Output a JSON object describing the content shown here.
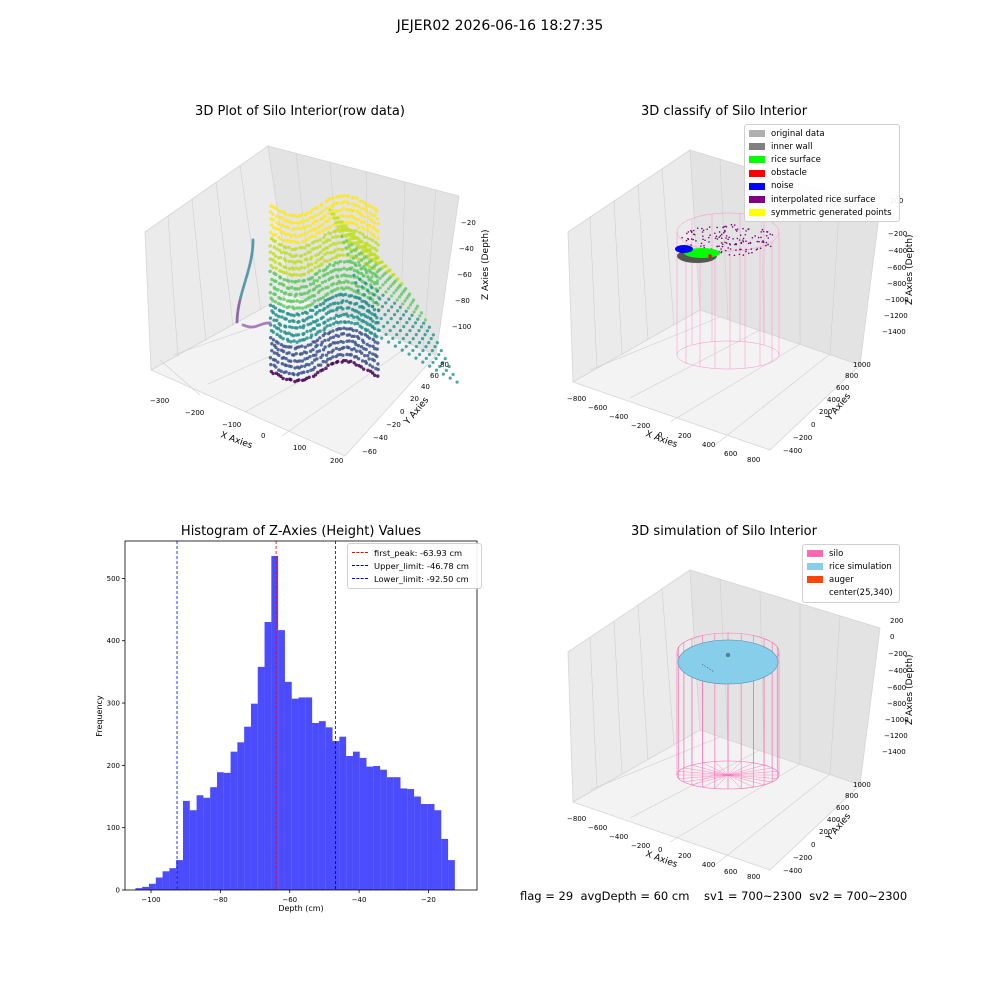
{
  "figure": {
    "suptitle": "JEJER02 2026-06-16 18:27:35",
    "footer": "flag = 29  avgDepth = 60 cm    sv1 = 700~2300  sv2 = 700~2300"
  },
  "panels": {
    "raw": {
      "title": "3D Plot of Silo Interior(row data)",
      "xlabel": "X Axies",
      "ylabel": "Y Axies",
      "zlabel": "Z Axies (Depth)",
      "xticks": [
        "−300",
        "−200",
        "−100",
        "0",
        "100",
        "200"
      ],
      "yticks": [
        "−60",
        "−40",
        "−20",
        "0",
        "20",
        "40",
        "60",
        "80"
      ],
      "zticks": [
        "−100",
        "−80",
        "−60",
        "−40",
        "−20"
      ]
    },
    "classify": {
      "title": "3D classify of Silo Interior",
      "xlabel": "X Axies",
      "ylabel": "Y Axies",
      "zlabel": "Z Axies (Depth)",
      "xticks": [
        "−800",
        "−600",
        "−400",
        "−200",
        "0",
        "200",
        "400",
        "600",
        "800"
      ],
      "yticks": [
        "−400",
        "−200",
        "0",
        "200",
        "400",
        "600",
        "800",
        "1000"
      ],
      "zticks": [
        "−1400",
        "−1200",
        "−1000",
        "−800",
        "−600",
        "−400",
        "−200",
        "0",
        "200"
      ],
      "legend": [
        {
          "label": "original data",
          "color": "#b0b0b0"
        },
        {
          "label": "inner wall",
          "color": "#808080"
        },
        {
          "label": "rice surface",
          "color": "#00ff00"
        },
        {
          "label": "obstacle",
          "color": "#ff0000"
        },
        {
          "label": "noise",
          "color": "#0000ff"
        },
        {
          "label": "interpolated rice surface",
          "color": "#800080"
        },
        {
          "label": "symmetric generated points",
          "color": "#ffff00"
        }
      ]
    },
    "simulation": {
      "title": "3D simulation of Silo Interior",
      "xlabel": "X Axies",
      "ylabel": "Y Axies",
      "zlabel": "Z Axies (Depth)",
      "xticks": [
        "−800",
        "−600",
        "−400",
        "−200",
        "0",
        "200",
        "400",
        "600",
        "800"
      ],
      "yticks": [
        "−400",
        "−200",
        "0",
        "200",
        "400",
        "600",
        "800",
        "1000"
      ],
      "zticks": [
        "−1400",
        "−1200",
        "−1000",
        "−800",
        "−600",
        "−400",
        "−200",
        "0",
        "200"
      ],
      "legend": [
        {
          "label": "silo",
          "color": "#ff69b4"
        },
        {
          "label": "rice simulation",
          "color": "#87ceeb"
        },
        {
          "label": "auger",
          "color": "#ff4500"
        },
        {
          "label": "center(25,340)",
          "color": ""
        }
      ]
    }
  },
  "chart_data": {
    "type": "bar",
    "title": "Histogram of Z-Axies (Height) Values",
    "xlabel": "Depth (cm)",
    "ylabel": "Frequency",
    "bar_color": "#0000ff",
    "xlim": [
      -107.5,
      -6
    ],
    "ylim": [
      0,
      560
    ],
    "xticks": [
      -100,
      -80,
      -60,
      -40,
      -20
    ],
    "yticks": [
      0,
      100,
      200,
      300,
      400,
      500
    ],
    "bins_start": -104.5,
    "bin_width": 1.96,
    "values": [
      3,
      5,
      10,
      20,
      30,
      35,
      48,
      143,
      128,
      152,
      148,
      165,
      189,
      188,
      222,
      237,
      262,
      299,
      358,
      430,
      536,
      417,
      334,
      307,
      309,
      309,
      268,
      271,
      261,
      239,
      246,
      215,
      222,
      212,
      198,
      199,
      193,
      181,
      181,
      163,
      162,
      150,
      138,
      138,
      128,
      82,
      48
    ],
    "lines": [
      {
        "label": "first_peak: -63.93 cm",
        "x": -63.93,
        "color": "#ff0000"
      },
      {
        "label": "Upper_limit: -46.78 cm",
        "x": -46.78,
        "color": "#00008b"
      },
      {
        "label": "Lower_limit: -92.50 cm",
        "x": -92.5,
        "color": "#0000ff"
      }
    ],
    "legend_position": "upper right"
  }
}
